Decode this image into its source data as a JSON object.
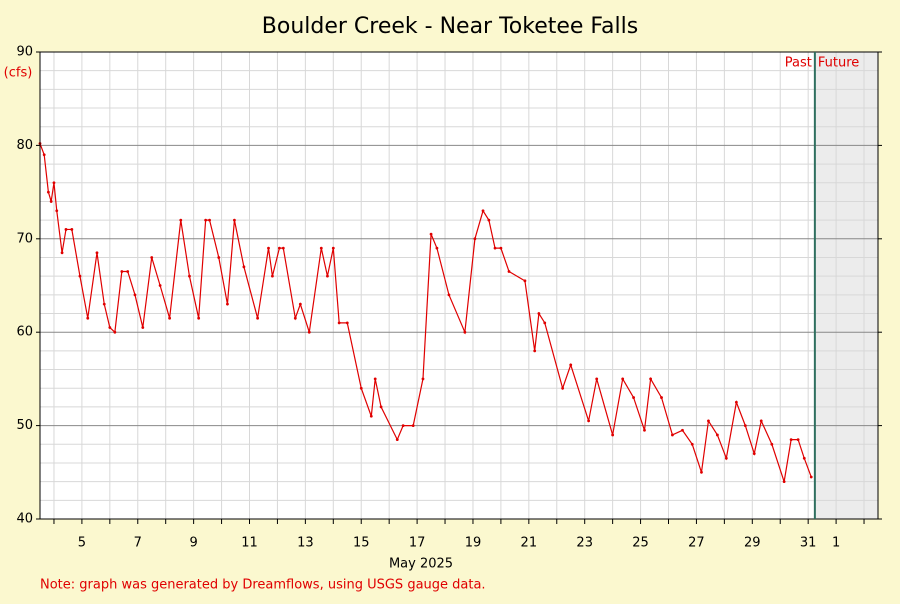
{
  "chart_data": {
    "type": "line",
    "title": "Boulder Creek - Near Toketee Falls",
    "y_label": "(cfs)",
    "x_label": "May 2025",
    "note": "Note: graph was generated by Dreamflows, using USGS gauge data.",
    "past_label": "Past",
    "future_label": "Future",
    "past_future_divider": 31.24,
    "xlim": [
      3.5,
      33.5
    ],
    "ylim": [
      40,
      90
    ],
    "xticks": [
      5,
      7,
      9,
      11,
      13,
      15,
      17,
      19,
      21,
      23,
      25,
      27,
      29,
      31,
      {
        "value": 32,
        "label": "1"
      }
    ],
    "x_minor_ticks": [
      4,
      6,
      8,
      10,
      12,
      14,
      16,
      18,
      20,
      22,
      24,
      26,
      28,
      30,
      33
    ],
    "yticks": [
      40,
      50,
      60,
      70,
      80,
      90
    ],
    "y_minor_ticks": [
      42,
      44,
      46,
      48,
      52,
      54,
      56,
      58,
      62,
      64,
      66,
      68,
      72,
      74,
      76,
      78,
      82,
      84,
      86,
      88
    ],
    "grid": true,
    "x": [
      3.5,
      3.65,
      3.8,
      3.9,
      4.0,
      4.1,
      4.29,
      4.43,
      4.64,
      4.93,
      5.21,
      5.54,
      5.8,
      6.0,
      6.18,
      6.43,
      6.64,
      6.9,
      7.18,
      7.5,
      7.8,
      8.14,
      8.54,
      8.85,
      9.18,
      9.43,
      9.57,
      9.9,
      10.21,
      10.46,
      10.8,
      11.29,
      11.68,
      11.82,
      12.07,
      12.21,
      12.64,
      12.82,
      13.14,
      13.57,
      13.79,
      14.0,
      14.21,
      14.5,
      15.0,
      15.36,
      15.5,
      15.71,
      16.29,
      16.5,
      16.86,
      17.21,
      17.5,
      17.71,
      18.14,
      18.71,
      19.07,
      19.36,
      19.57,
      19.79,
      20.0,
      20.29,
      20.86,
      21.21,
      21.36,
      21.57,
      22.21,
      22.5,
      23.14,
      23.43,
      24.0,
      24.36,
      24.75,
      25.14,
      25.36,
      25.75,
      26.14,
      26.5,
      26.85,
      27.18,
      27.43,
      27.75,
      28.07,
      28.43,
      28.75,
      29.07,
      29.32,
      29.7,
      30.14,
      30.39,
      30.64,
      30.86,
      31.11
    ],
    "series": [
      {
        "name": "Boulder Creek",
        "color": "#e00000",
        "values": [
          80.2,
          79,
          75,
          74,
          76,
          73,
          68.5,
          71,
          71,
          66,
          61.5,
          68.5,
          63,
          60.5,
          60,
          66.5,
          66.5,
          64,
          60.5,
          68,
          65,
          61.5,
          72,
          66,
          61.5,
          72,
          72,
          68,
          63,
          72,
          67,
          61.5,
          69,
          66,
          69,
          69,
          61.5,
          63,
          60,
          69,
          66,
          69,
          61,
          61,
          54,
          51,
          55,
          52,
          48.5,
          50,
          50,
          55,
          70.5,
          69,
          64,
          60,
          70,
          73,
          72,
          69,
          69,
          66.5,
          65.5,
          58,
          62,
          61,
          54,
          56.5,
          50.5,
          55,
          49,
          55,
          53,
          49.5,
          55,
          53,
          49,
          49.5,
          48,
          45,
          50.5,
          49,
          46.5,
          52.5,
          50,
          47,
          50.5,
          48,
          44,
          48.5,
          48.5,
          46.5,
          44.5
        ]
      }
    ]
  }
}
